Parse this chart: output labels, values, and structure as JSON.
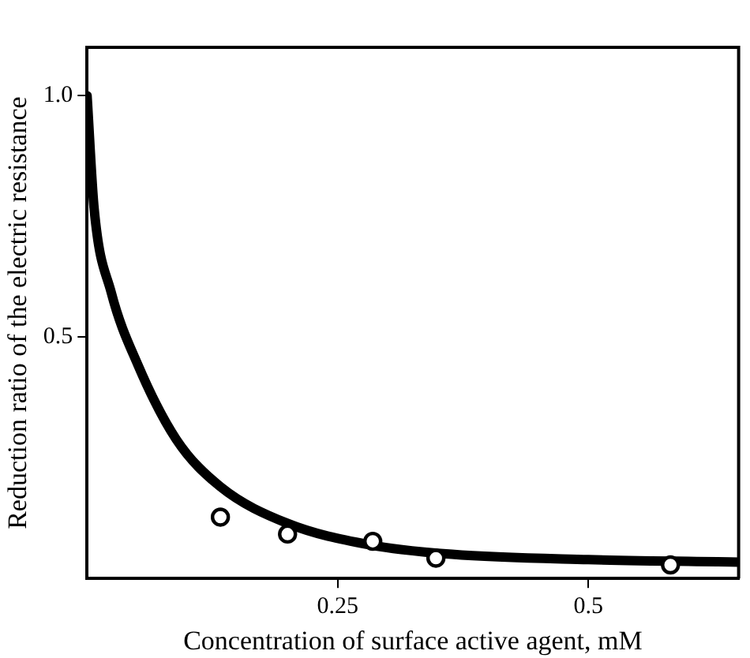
{
  "chart_data": {
    "type": "line",
    "xlabel": "Concentration of surface active agent, mM",
    "ylabel": "Reduction ratio of the electric resistance",
    "xlim": [
      0,
      0.65
    ],
    "ylim": [
      0,
      1.1
    ],
    "xticks": [
      0.25,
      0.5
    ],
    "yticks": [
      0.5,
      {
        "value": 1,
        "label": "1.0"
      }
    ],
    "grid": false,
    "legend": false,
    "series": [
      {
        "color": "#000000",
        "marker": "none",
        "line_style": "solid",
        "x": [
          0,
          0.007,
          0.024,
          0.051,
          0.089,
          0.133,
          0.2,
          0.281,
          0.364,
          0.5,
          0.65
        ],
        "values": [
          1.0,
          0.767,
          0.593,
          0.441,
          0.288,
          0.19,
          0.114,
          0.07,
          0.05,
          0.039,
          0.034
        ]
      },
      {
        "type": "scatter",
        "color": "#000000",
        "marker": "circle",
        "x": [
          0.133,
          0.2,
          0.285,
          0.348,
          0.582
        ],
        "values": [
          0.127,
          0.092,
          0.077,
          0.042,
          0.028
        ]
      }
    ]
  }
}
